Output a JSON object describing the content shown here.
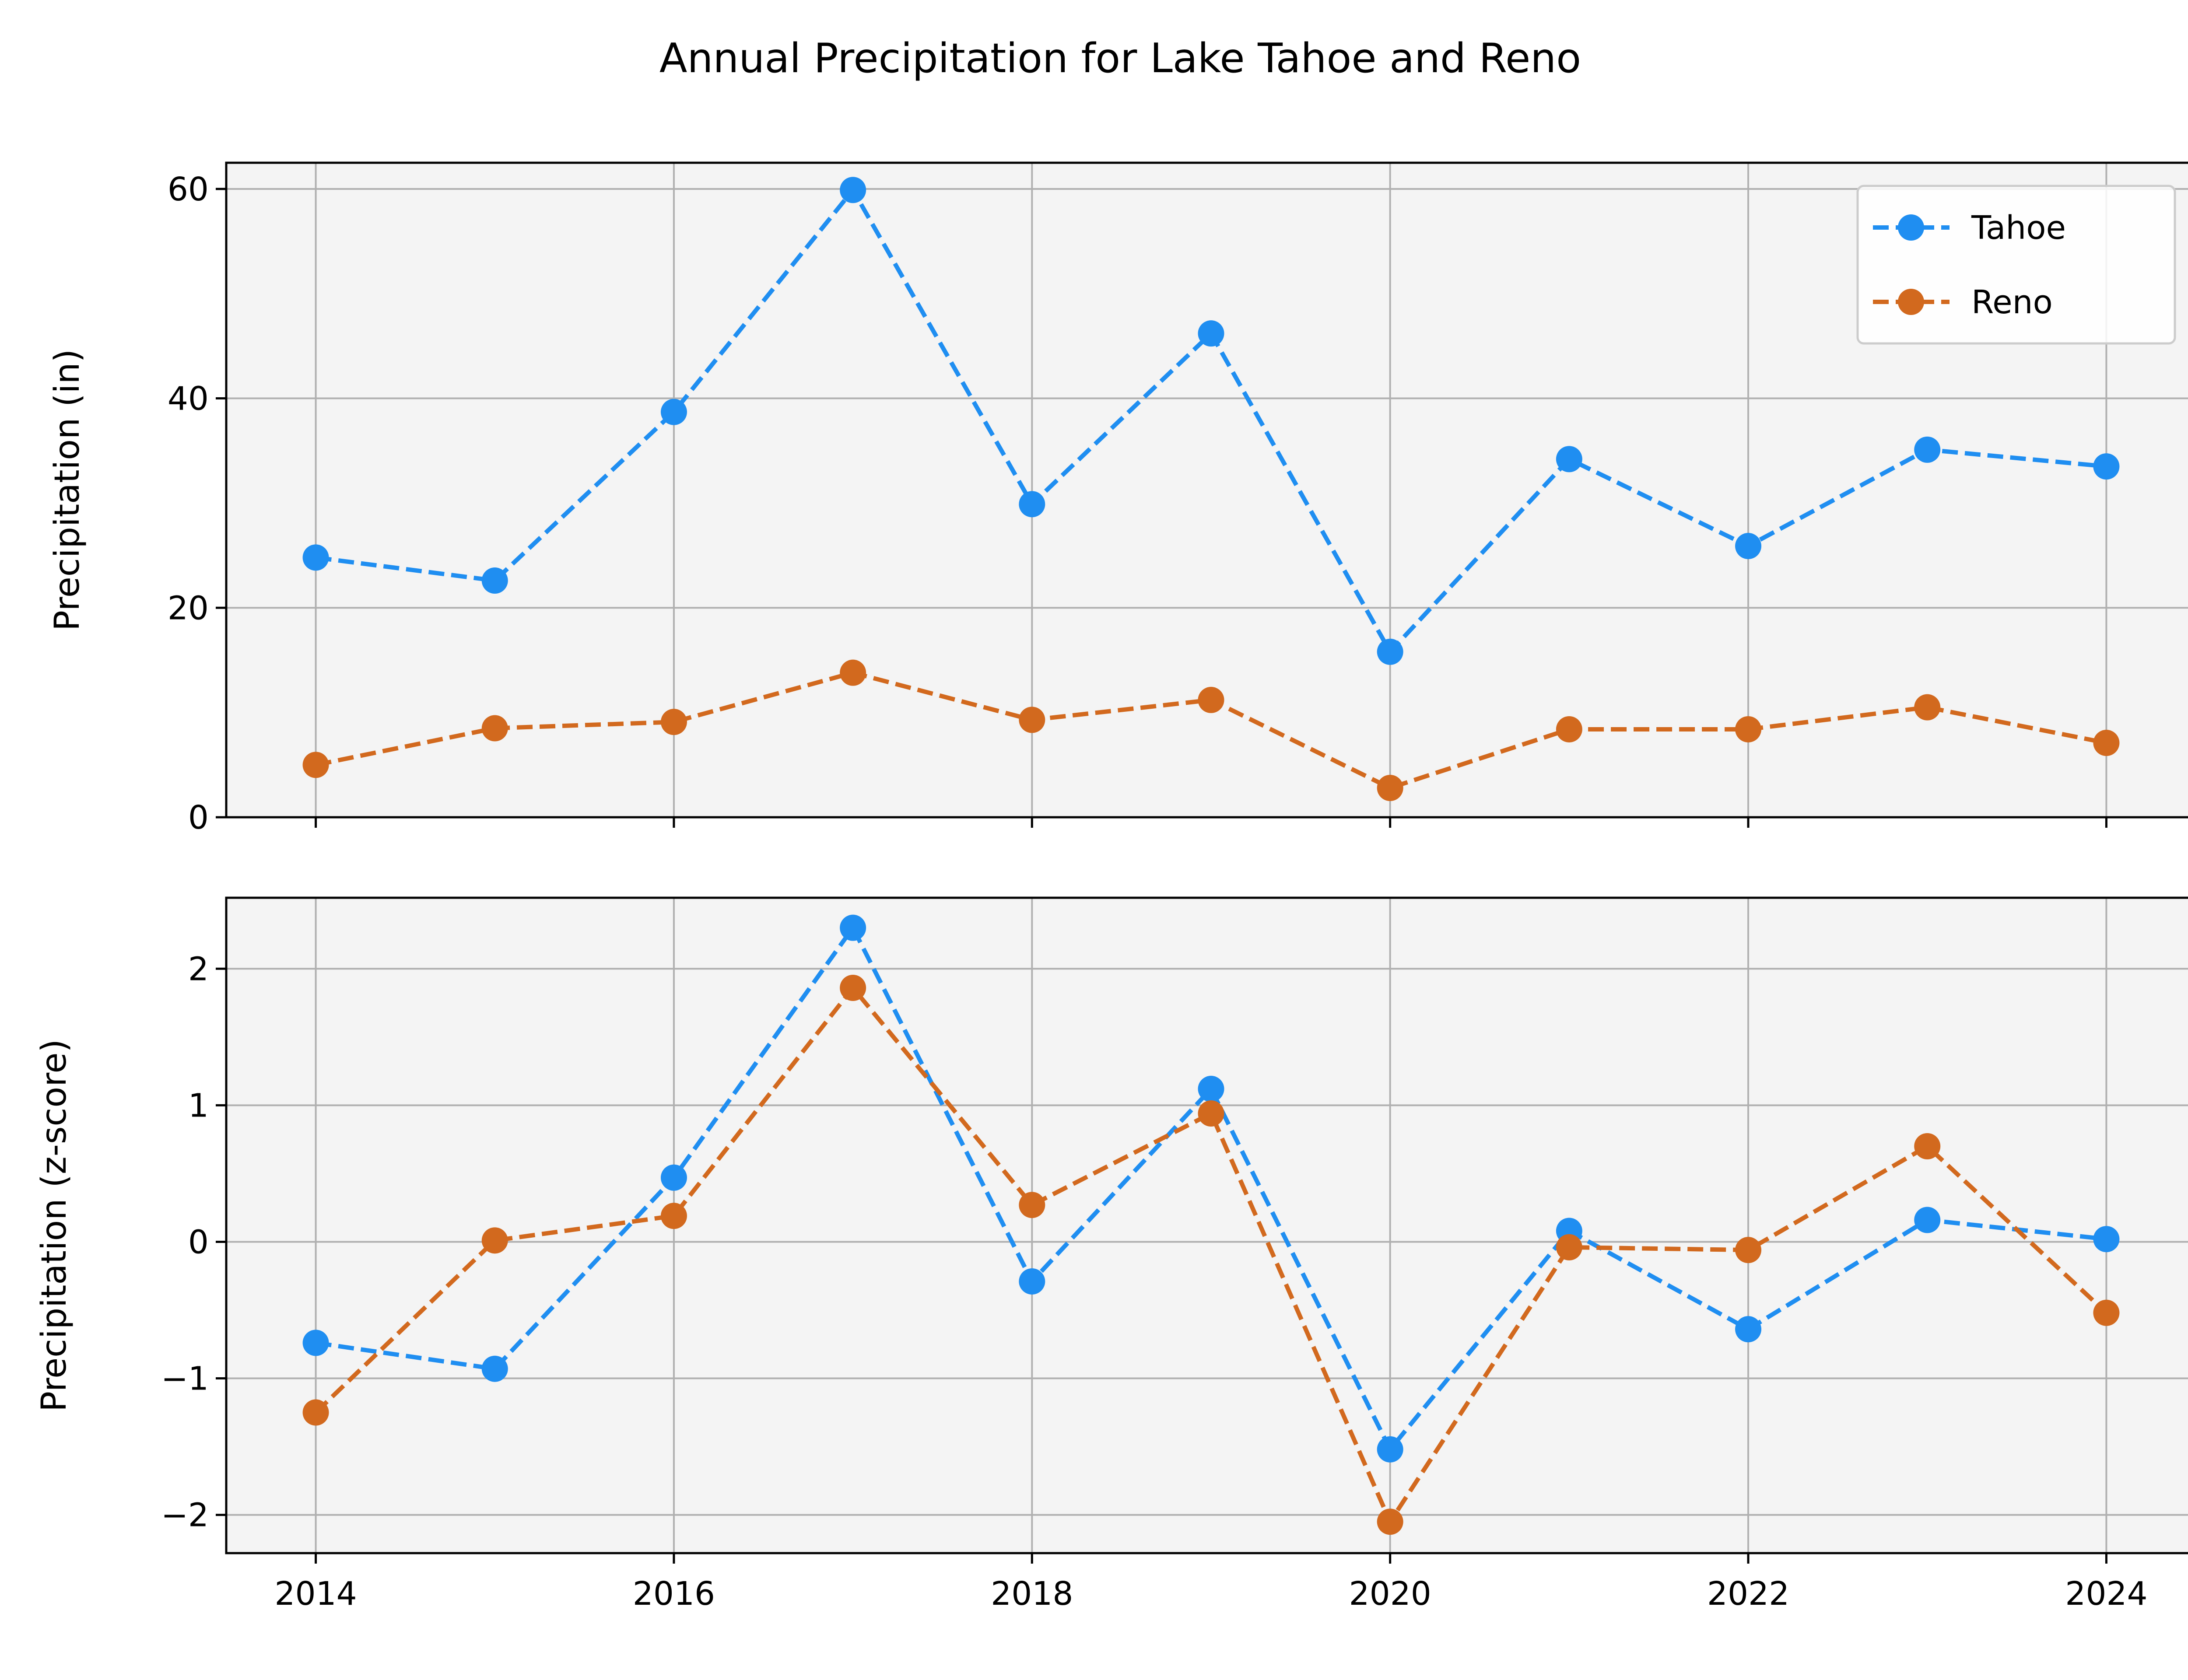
{
  "title": "Annual Precipitation for Lake Tahoe and Reno",
  "chart_data": [
    {
      "type": "line",
      "panel": "top",
      "title": "",
      "xlabel": "",
      "ylabel": "Precipitation (in)",
      "x": [
        2014,
        2015,
        2016,
        2017,
        2018,
        2019,
        2020,
        2021,
        2022,
        2023,
        2024
      ],
      "xlim": [
        2013.5,
        2024.5
      ],
      "ylim": [
        0,
        62.5
      ],
      "xticks": [
        2014,
        2016,
        2018,
        2020,
        2022,
        2024
      ],
      "yticks": [
        0,
        20,
        40,
        60
      ],
      "ytick_labels": [
        "0",
        "20",
        "40",
        "60"
      ],
      "show_xtick_labels": false,
      "grid": true,
      "legend": "top-right",
      "series": [
        {
          "name": "Tahoe",
          "color": "#1f8ef1",
          "linestyle": "dashed",
          "marker": "circle",
          "values": [
            24.8,
            22.6,
            38.7,
            59.9,
            29.9,
            46.2,
            15.8,
            34.2,
            25.9,
            35.1,
            33.5
          ]
        },
        {
          "name": "Reno",
          "color": "#d2691e",
          "linestyle": "dashed",
          "marker": "circle",
          "values": [
            5.0,
            8.5,
            9.1,
            13.8,
            9.3,
            11.2,
            2.8,
            8.4,
            8.4,
            10.5,
            7.1
          ]
        }
      ]
    },
    {
      "type": "line",
      "panel": "bottom",
      "title": "",
      "xlabel": "",
      "ylabel": "Precipitation (z-score)",
      "x": [
        2014,
        2015,
        2016,
        2017,
        2018,
        2019,
        2020,
        2021,
        2022,
        2023,
        2024
      ],
      "xlim": [
        2013.5,
        2024.5
      ],
      "ylim": [
        -2.28,
        2.52
      ],
      "xticks": [
        2014,
        2016,
        2018,
        2020,
        2022,
        2024
      ],
      "xtick_labels": [
        "2014",
        "2016",
        "2018",
        "2020",
        "2022",
        "2024"
      ],
      "yticks": [
        -2,
        -1,
        0,
        1,
        2
      ],
      "ytick_labels": [
        "−2",
        "−1",
        "0",
        "1",
        "2"
      ],
      "grid": true,
      "series": [
        {
          "color": "#1f8ef1",
          "linestyle": "dashed",
          "marker": "circle",
          "values": [
            -0.74,
            -0.93,
            0.47,
            2.3,
            -0.29,
            1.12,
            -1.52,
            0.08,
            -0.64,
            0.16,
            0.02
          ]
        },
        {
          "color": "#d2691e",
          "linestyle": "dashed",
          "marker": "circle",
          "values": [
            -1.25,
            0.01,
            0.19,
            1.86,
            0.27,
            0.94,
            -2.05,
            -0.04,
            -0.06,
            0.7,
            -0.52
          ]
        }
      ]
    }
  ]
}
